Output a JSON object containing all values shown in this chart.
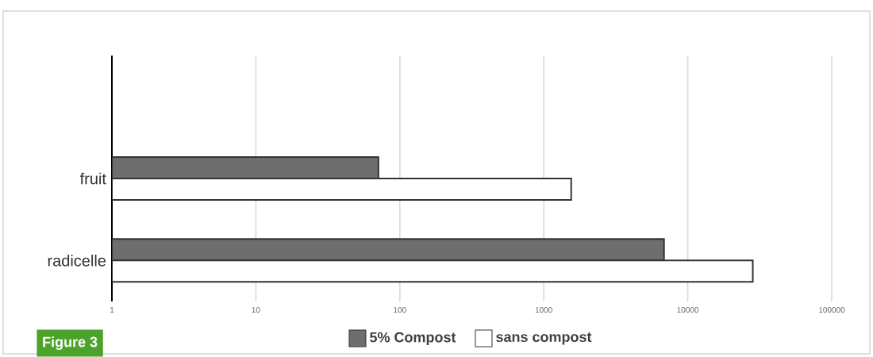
{
  "chart_data": {
    "type": "bar",
    "orientation": "horizontal",
    "log": "x",
    "categories": [
      null,
      "fruit",
      "radicelle"
    ],
    "series": [
      {
        "name": "5% Compost",
        "color": "#6e6e6e",
        "values": [
          null,
          71,
          6840
        ]
      },
      {
        "name": "sans compost",
        "color": "#ffffff",
        "values": [
          null,
          1550,
          28300
        ]
      }
    ],
    "xlim": [
      1,
      100000
    ],
    "xticks": [
      1,
      10,
      100,
      1000,
      10000,
      100000
    ],
    "grid": "x",
    "legend": "bottom",
    "annotations": [
      "Figure 3"
    ]
  }
}
